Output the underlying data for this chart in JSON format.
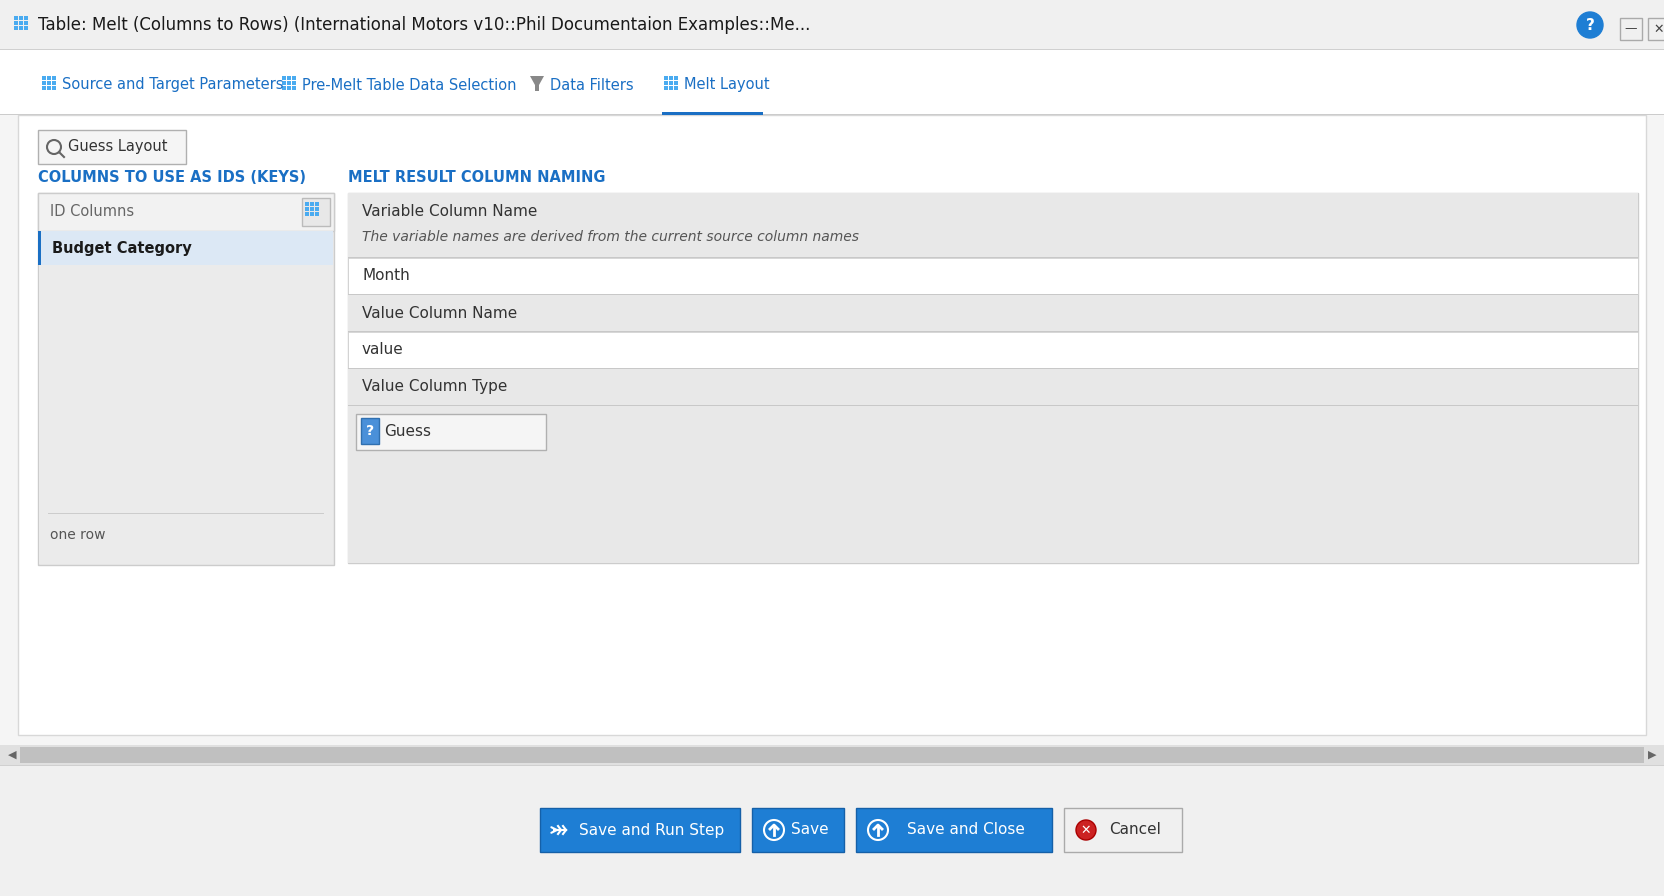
{
  "title_bar_text": "Table: Melt (Columns to Rows) (International Motors v10::Phil Documentaion Examples::Me...",
  "title_bar_bg": "#f0f0f0",
  "window_bg": "#f5f5f5",
  "tab_bar_bg": "#ffffff",
  "tabs": [
    "Source and Target Parameters",
    "Pre-Melt Table Data Selection",
    "Data Filters",
    "Melt Layout"
  ],
  "active_tab": 3,
  "active_tab_color": "#1a6fc4",
  "tab_text_color": "#1a6fc4",
  "content_bg": "#ffffff",
  "guess_layout_btn": "Guess Layout",
  "left_section_title": "COLUMNS TO USE AS IDS (KEYS)",
  "left_section_title_color": "#1a6fc4",
  "id_columns_header": "ID Columns",
  "id_columns_value": "Budget Category",
  "one_row_label": "one row",
  "right_section_title": "MELT RESULT COLUMN NAMING",
  "right_section_title_color": "#1a6fc4",
  "variable_col_name_label": "Variable Column Name",
  "variable_col_name_desc": "The variable names are derived from the current source column names",
  "variable_col_name_value": "Month",
  "value_col_name_label": "Value Column Name",
  "value_col_name_value": "value",
  "value_col_type_label": "Value Column Type",
  "value_col_type_value": "Guess",
  "scrollbar_bg": "#c8c8c8",
  "bottom_bar_bg": "#f0f0f0",
  "btn_save_run": "Save and Run Step",
  "btn_save": "Save",
  "btn_save_close": "Save and Close",
  "btn_cancel": "Cancel",
  "btn_blue_bg": "#1e7ed4",
  "btn_blue_fg": "#ffffff",
  "btn_cancel_bg": "#f0f0f0",
  "btn_cancel_fg": "#333333"
}
